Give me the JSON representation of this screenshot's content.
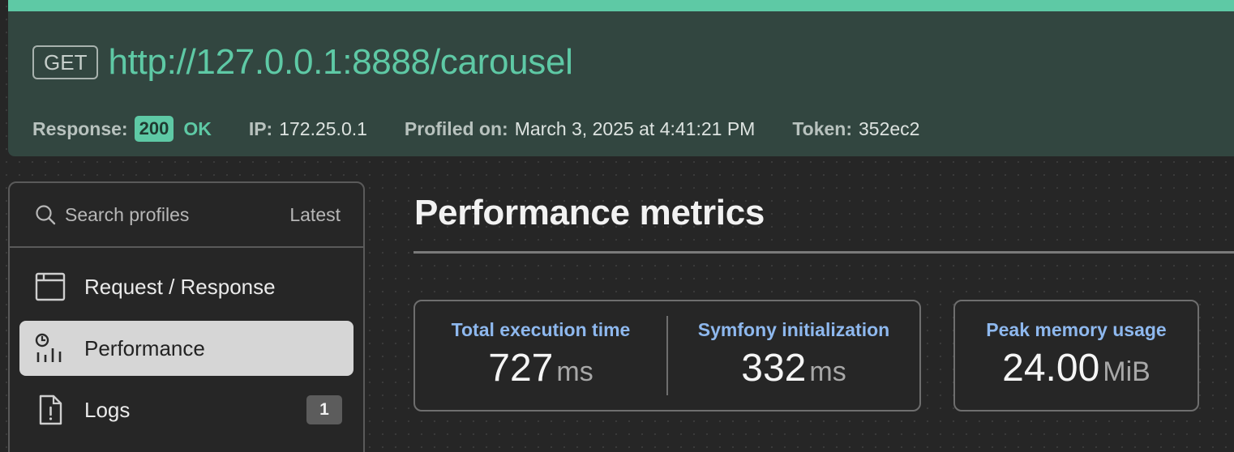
{
  "request": {
    "method": "GET",
    "url": "http://127.0.0.1:8888/carousel"
  },
  "summary": {
    "response_label": "Response:",
    "status_code": "200",
    "status_text": "OK",
    "ip_label": "IP:",
    "ip_value": "172.25.0.1",
    "profiled_label": "Profiled on:",
    "profiled_value": "March 3, 2025 at 4:41:21 PM",
    "token_label": "Token:",
    "token_value": "352ec2"
  },
  "sidebar": {
    "search_label": "Search profiles",
    "latest_label": "Latest",
    "items": [
      {
        "label": "Request / Response",
        "icon": "window-icon",
        "active": false
      },
      {
        "label": "Performance",
        "icon": "performance-icon",
        "active": true
      },
      {
        "label": "Logs",
        "icon": "log-file-icon",
        "active": false,
        "count": "1"
      }
    ]
  },
  "main": {
    "title": "Performance metrics",
    "metrics": [
      {
        "label": "Total execution time",
        "value": "727",
        "unit": "ms"
      },
      {
        "label": "Symfony initialization",
        "value": "332",
        "unit": "ms"
      },
      {
        "label": "Peak memory usage",
        "value": "24.00",
        "unit": "MiB"
      }
    ]
  },
  "colors": {
    "accent": "#5ec9a5",
    "header_bg": "#324640",
    "metric_label": "#8eb8ee"
  }
}
